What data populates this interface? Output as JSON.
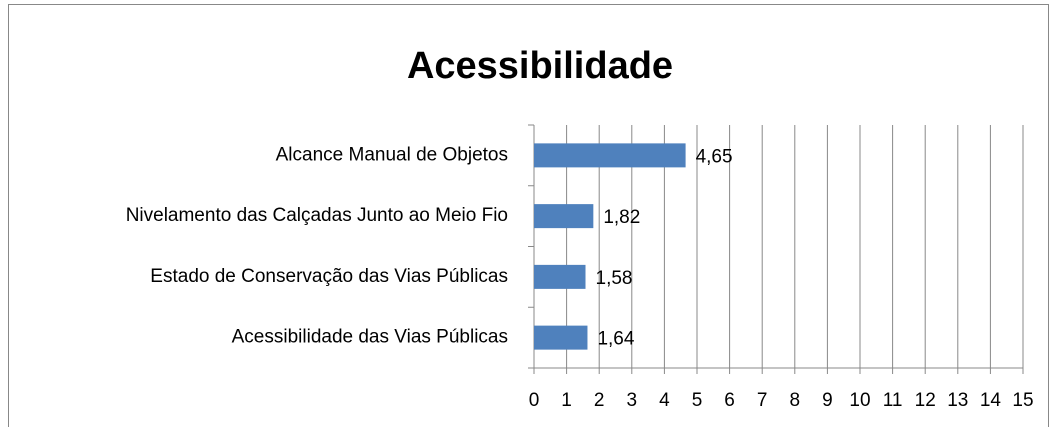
{
  "chart_data": {
    "type": "bar",
    "orientation": "horizontal",
    "title": "Acessibilidade",
    "categories": [
      "Alcance Manual de Objetos",
      "Nivelamento das Calçadas Junto ao Meio Fio",
      "Estado de Conservação das Vias Públicas",
      "Acessibilidade das Vias Públicas"
    ],
    "values": [
      4.65,
      1.82,
      1.58,
      1.64
    ],
    "value_labels": [
      "4,65",
      "1,82",
      "1,58",
      "1,64"
    ],
    "color": "#4f81bd",
    "xlim": [
      0,
      15
    ],
    "xticks": [
      0,
      1,
      2,
      3,
      4,
      5,
      6,
      7,
      8,
      9,
      10,
      11,
      12,
      13,
      14,
      15
    ],
    "grid": true
  }
}
